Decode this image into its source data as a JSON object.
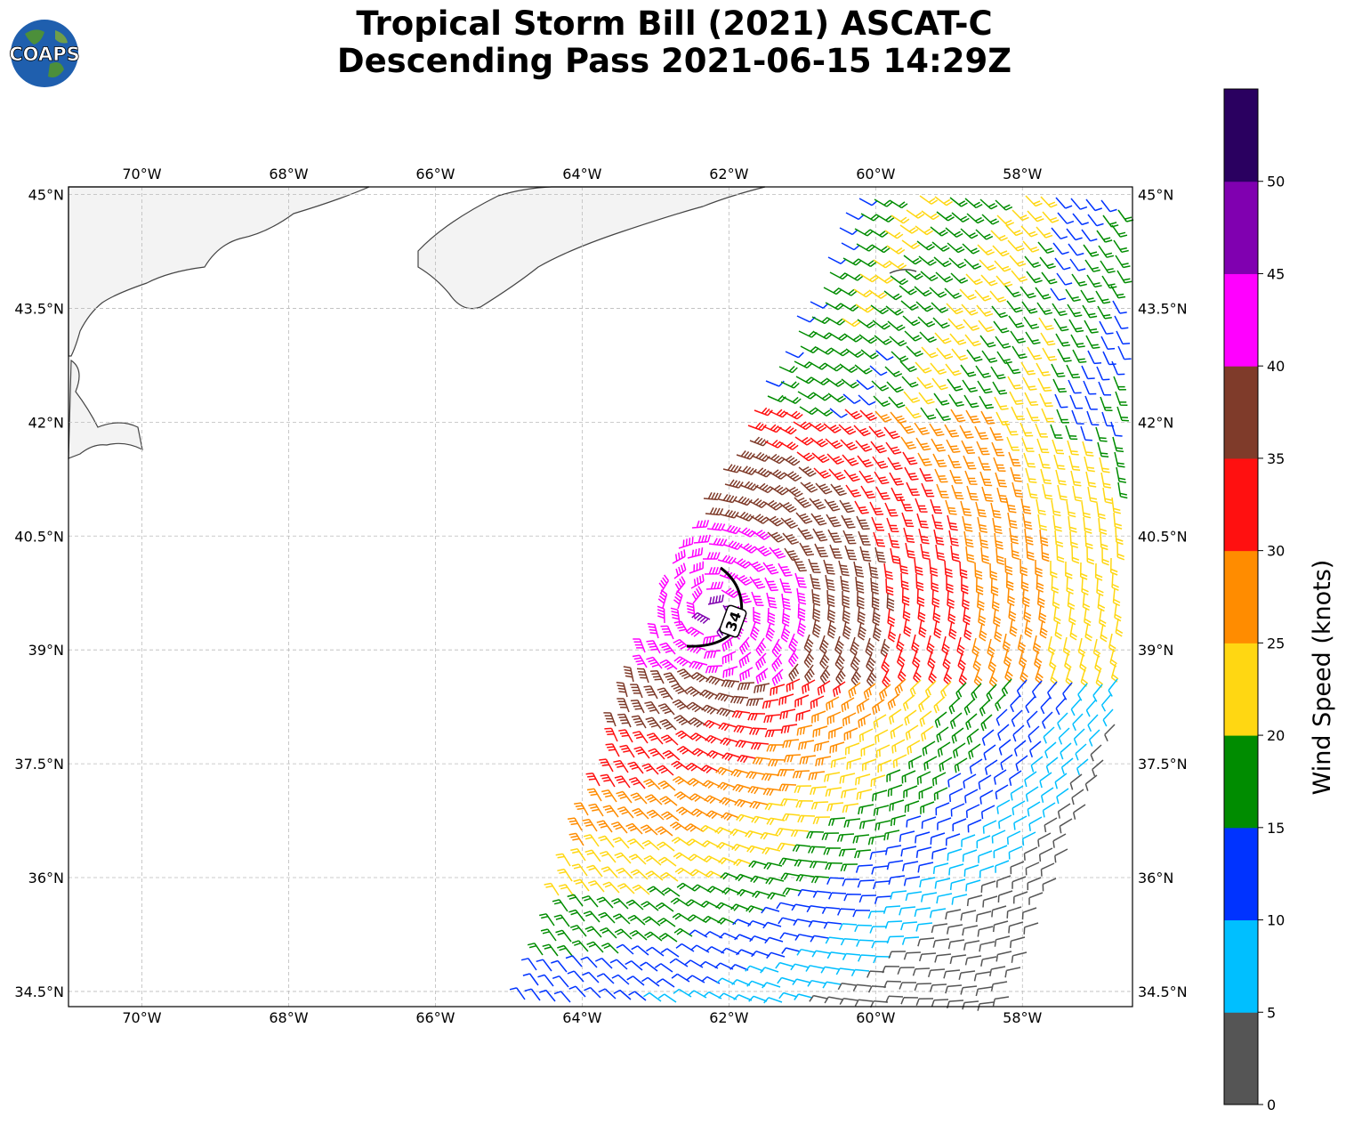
{
  "title": {
    "line1": "Tropical Storm Bill (2021) ASCAT-C",
    "line2": "Descending Pass 2021-06-15 14:29Z"
  },
  "logo": {
    "text": "COAPS",
    "icon": "globe-icon"
  },
  "map": {
    "lon_range": [
      -71.0,
      -56.5
    ],
    "lat_range": [
      34.3,
      45.1
    ],
    "lon_ticks": [
      "70°W",
      "68°W",
      "66°W",
      "64°W",
      "62°W",
      "60°W",
      "58°W"
    ],
    "lat_ticks": [
      "45°N",
      "43.5°N",
      "42°N",
      "40.5°N",
      "39°N",
      "37.5°N",
      "36°N",
      "34.5°N"
    ],
    "contour_label": "34",
    "gridlines": true
  },
  "colorbar": {
    "label": "Wind Speed (knots)",
    "ticks": [
      "0",
      "5",
      "10",
      "15",
      "20",
      "25",
      "30",
      "35",
      "40",
      "45",
      "50"
    ],
    "colors": [
      "#555555",
      "#00bfff",
      "#0033ff",
      "#008c00",
      "#ffd712",
      "#ff8c00",
      "#ff1010",
      "#7f3b2a",
      "#ff00ff",
      "#8000b0",
      "#2a0060"
    ]
  }
}
